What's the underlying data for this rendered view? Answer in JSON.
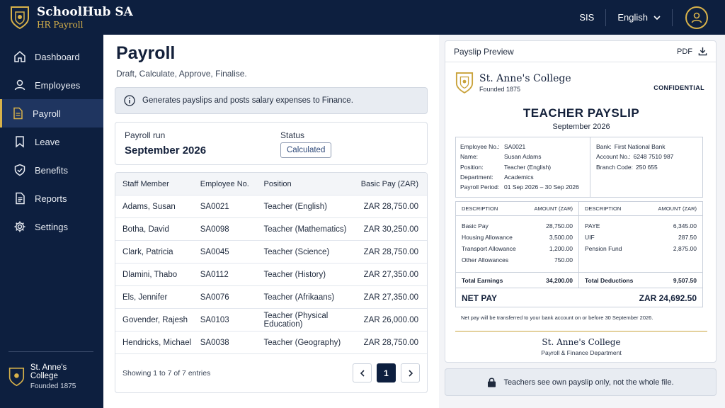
{
  "app": {
    "name": "SchoolHub SA",
    "module": "HR Payroll"
  },
  "topbar": {
    "sis": "SIS",
    "language": "English"
  },
  "sidebar": {
    "items": [
      {
        "label": "Dashboard",
        "icon": "home-icon"
      },
      {
        "label": "Employees",
        "icon": "user-icon"
      },
      {
        "label": "Payroll",
        "icon": "document-icon",
        "active": true
      },
      {
        "label": "Leave",
        "icon": "bookmark-icon"
      },
      {
        "label": "Benefits",
        "icon": "shield-check-icon"
      },
      {
        "label": "Reports",
        "icon": "report-icon"
      },
      {
        "label": "Settings",
        "icon": "gear-icon"
      }
    ],
    "school": {
      "name": "St. Anne's College",
      "founded": "Founded 1875"
    }
  },
  "main": {
    "title": "Payroll",
    "subtitle": "Draft, Calculate, Approve, Finalise.",
    "info": "Generates payslips and posts salary expenses to Finance.",
    "run": {
      "label": "Payroll run",
      "value": "September 2026",
      "status_label": "Status",
      "status": "Calculated"
    },
    "table": {
      "headers": [
        "Staff Member",
        "Employee No.",
        "Position",
        "Basic Pay (ZAR)"
      ],
      "rows": [
        [
          "Adams, Susan",
          "SA0021",
          "Teacher (English)",
          "ZAR 28,750.00"
        ],
        [
          "Botha, David",
          "SA0098",
          "Teacher (Mathematics)",
          "ZAR 30,250.00"
        ],
        [
          "Clark, Patricia",
          "SA0045",
          "Teacher (Science)",
          "ZAR 28,750.00"
        ],
        [
          "Dlamini, Thabo",
          "SA0112",
          "Teacher (History)",
          "ZAR 27,350.00"
        ],
        [
          "Els, Jennifer",
          "SA0076",
          "Teacher (Afrikaans)",
          "ZAR 27,350.00"
        ],
        [
          "Govender, Rajesh",
          "SA0103",
          "Teacher (Physical Education)",
          "ZAR 26,000.00"
        ],
        [
          "Hendricks, Michael",
          "SA0038",
          "Teacher (Geography)",
          "ZAR 28,750.00"
        ]
      ],
      "showing": "Showing 1 to 7 of 7 entries",
      "page": "1"
    }
  },
  "preview": {
    "title": "Payslip Preview",
    "pdf": "PDF",
    "school": "St. Anne's College",
    "founded": "Founded 1875",
    "confidential": "CONFIDENTIAL",
    "doc_title": "TEACHER PAYSLIP",
    "month": "September 2026",
    "employee": [
      {
        "k": "Employee No.:",
        "v": "SA0021"
      },
      {
        "k": "Name:",
        "v": "Susan Adams"
      },
      {
        "k": "Position:",
        "v": "Teacher (English)"
      },
      {
        "k": "Department:",
        "v": "Academics"
      },
      {
        "k": "Payroll Period:",
        "v": "01 Sep 2026 – 30 Sep 2026"
      }
    ],
    "bank": [
      {
        "k": "Bank:",
        "v": "First National Bank"
      },
      {
        "k": "Account No.:",
        "v": "6248 7510 987"
      },
      {
        "k": "Branch Code:",
        "v": "250 655"
      }
    ],
    "earn_headers": [
      "DESCRIPTION",
      "AMOUNT (ZAR)"
    ],
    "earnings": [
      {
        "d": "Basic Pay",
        "a": "28,750.00"
      },
      {
        "d": "Housing Allowance",
        "a": "3,500.00"
      },
      {
        "d": "Transport Allowance",
        "a": "1,200.00"
      },
      {
        "d": "Other Allowances",
        "a": "750.00"
      }
    ],
    "deductions": [
      {
        "d": "PAYE",
        "a": "6,345.00"
      },
      {
        "d": "UIF",
        "a": "287.50"
      },
      {
        "d": "Pension Fund",
        "a": "2,875.00"
      }
    ],
    "total_earnings_label": "Total Earnings",
    "total_earnings": "34,200.00",
    "total_deductions_label": "Total Deductions",
    "total_deductions": "9,507.50",
    "net_label": "NET PAY",
    "net": "ZAR 24,692.50",
    "note": "Net pay will be transferred to your bank account on or before 30 September 2026.",
    "footer_dept": "Payroll & Finance Department"
  },
  "privacy_note": "Teachers see own payslip only, not the whole file.",
  "colors": {
    "navy": "#0d1f3f",
    "gold": "#d8b24a"
  }
}
